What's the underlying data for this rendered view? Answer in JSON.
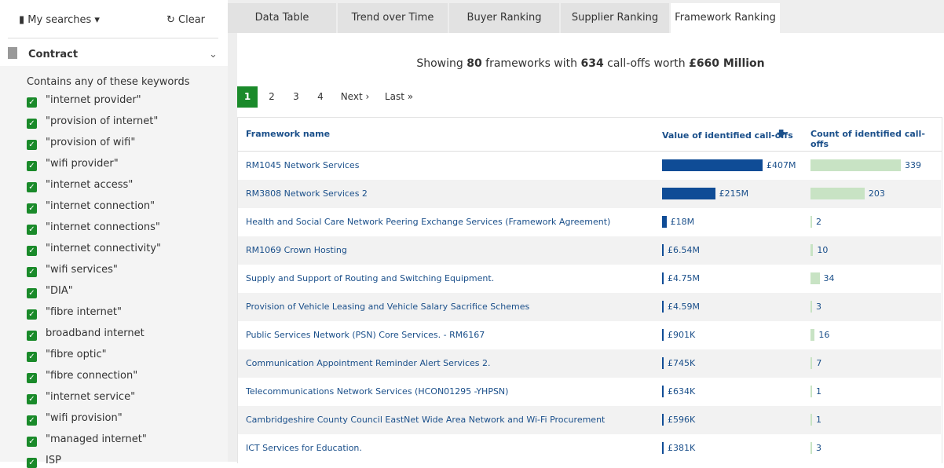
{
  "sidebar": {
    "my_searches": "My searches",
    "clear": "Clear",
    "section": "Contract",
    "filter_label": "Contains any of these keywords",
    "keywords": [
      "\"internet provider\"",
      "\"provision of internet\"",
      "\"provision of wifi\"",
      "\"wifi provider\"",
      "\"internet access\"",
      "\"internet connection\"",
      "\"internet connections\"",
      "\"internet connectivity\"",
      "\"wifi services\"",
      "\"DIA\"",
      "\"fibre internet\"",
      "broadband internet",
      "\"fibre optic\"",
      "\"fibre connection\"",
      "\"internet service\"",
      "\"wifi provision\"",
      "\"managed internet\"",
      "ISP"
    ]
  },
  "tabs": [
    "Data Table",
    "Trend over Time",
    "Buyer Ranking",
    "Supplier Ranking",
    "Framework Ranking"
  ],
  "summary": {
    "prefix": "Showing",
    "frameworks": 80,
    "middle": "frameworks with",
    "calloffs": 634,
    "worth": "call-offs worth",
    "total": "£660 Million"
  },
  "pagination": {
    "pages": [
      1,
      2,
      3,
      4
    ],
    "next": "Next ›",
    "last": "Last »"
  },
  "table": {
    "headers": [
      "Framework name",
      "Value of identified call-offs",
      "Count of identified call-offs"
    ],
    "rows": [
      {
        "name": "RM1045 Network Services",
        "value": 407000000,
        "value_label": "£407M",
        "count": 339
      },
      {
        "name": "RM3808 Network Services 2",
        "value": 215000000,
        "value_label": "£215M",
        "count": 203
      },
      {
        "name": "Health and Social Care Network Peering Exchange Services (Framework Agreement)",
        "value": 18000000,
        "value_label": "£18M",
        "count": 2
      },
      {
        "name": "RM1069 Crown Hosting",
        "value": 6540000,
        "value_label": "£6.54M",
        "count": 10
      },
      {
        "name": "Supply and Support of Routing and Switching Equipment.",
        "value": 4750000,
        "value_label": "£4.75M",
        "count": 34
      },
      {
        "name": "Provision of Vehicle Leasing and Vehicle Salary Sacrifice Schemes",
        "value": 4590000,
        "value_label": "£4.59M",
        "count": 3
      },
      {
        "name": "Public Services Network (PSN) Core Services. - RM6167",
        "value": 901000,
        "value_label": "£901K",
        "count": 16
      },
      {
        "name": "Communication Appointment Reminder Alert Services 2.",
        "value": 745000,
        "value_label": "£745K",
        "count": 7
      },
      {
        "name": "Telecommunications Network Services (HCON01295 -YHPSN)",
        "value": 634000,
        "value_label": "£634K",
        "count": 1
      },
      {
        "name": "Cambridgeshire County Council EastNet Wide Area Network and Wi-Fi Procurement",
        "value": 596000,
        "value_label": "£596K",
        "count": 1
      },
      {
        "name": "ICT Services for Education.",
        "value": 381000,
        "value_label": "£381K",
        "count": 3
      }
    ]
  }
}
